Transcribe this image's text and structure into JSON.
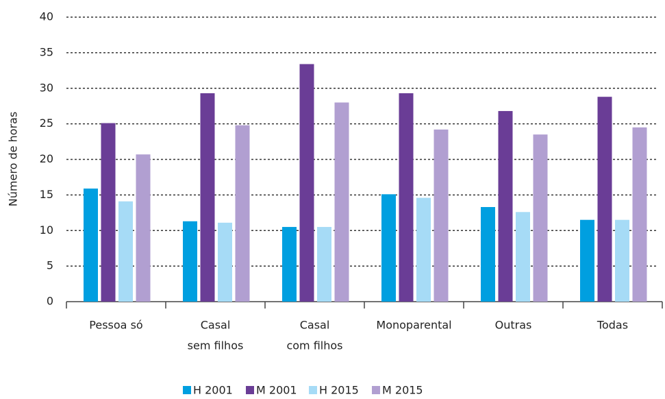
{
  "chart_data": {
    "type": "bar",
    "y_label": "Número de horas",
    "categories": [
      [
        "Pessoa só"
      ],
      [
        "Casal",
        "sem filhos"
      ],
      [
        "Casal",
        "com filhos"
      ],
      [
        "Monoparental"
      ],
      [
        "Outras"
      ],
      [
        "Todas"
      ]
    ],
    "series": [
      {
        "name": "H 2001",
        "color": "#009fe0",
        "values": [
          15.9,
          11.3,
          10.5,
          15.1,
          13.3,
          11.5
        ]
      },
      {
        "name": "M 2001",
        "color": "#6a3d96",
        "values": [
          25.1,
          29.3,
          33.4,
          29.3,
          26.8,
          28.8
        ]
      },
      {
        "name": "H 2015",
        "color": "#a6dbf6",
        "values": [
          14.1,
          11.1,
          10.5,
          14.6,
          12.6,
          11.5
        ]
      },
      {
        "name": "M 2015",
        "color": "#b19fd1",
        "values": [
          20.7,
          24.8,
          28.0,
          24.2,
          23.5,
          24.5
        ]
      }
    ],
    "ylim": [
      0,
      40
    ],
    "yticks": [
      0,
      5,
      10,
      15,
      20,
      25,
      30,
      35,
      40
    ],
    "grid": true,
    "legend": "bottom"
  }
}
